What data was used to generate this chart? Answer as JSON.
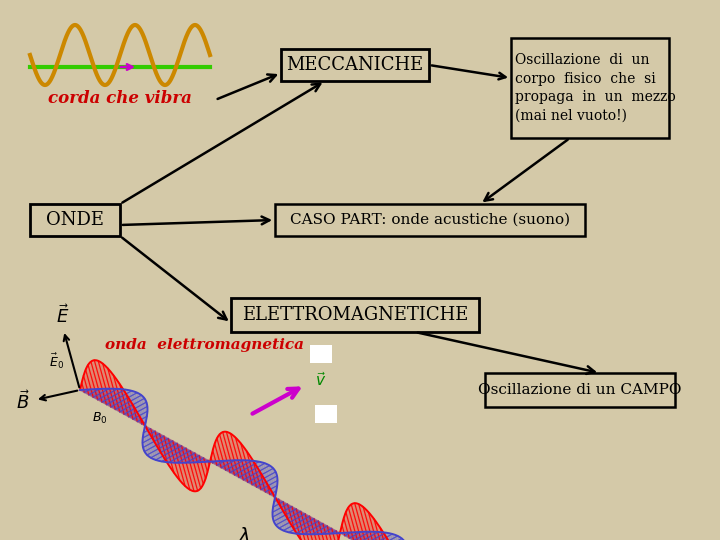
{
  "background_color": "#d4c9a8",
  "wave_color": "#cc8800",
  "line_color": "#33cc00",
  "text_color_red": "#cc0000",
  "text_color_black": "#000000",
  "box_meccaniche": "MECCANICHE",
  "box_onde": "ONDE",
  "box_caso": "CASO PART: onde acustiche (suono)",
  "box_elettro": "ELETTROMAGNETICHE",
  "box_oscillazione_mec": "Oscillazione  di  un\ncorpo  fisico  che  si\npropaga  in  un  mezzo\n(mai nel vuoto!)",
  "box_oscillazione_campo": "Oscillazione di un CAMPO",
  "label_corda": "corda che vibra",
  "label_onda_em": "onda  elettromagnetica"
}
